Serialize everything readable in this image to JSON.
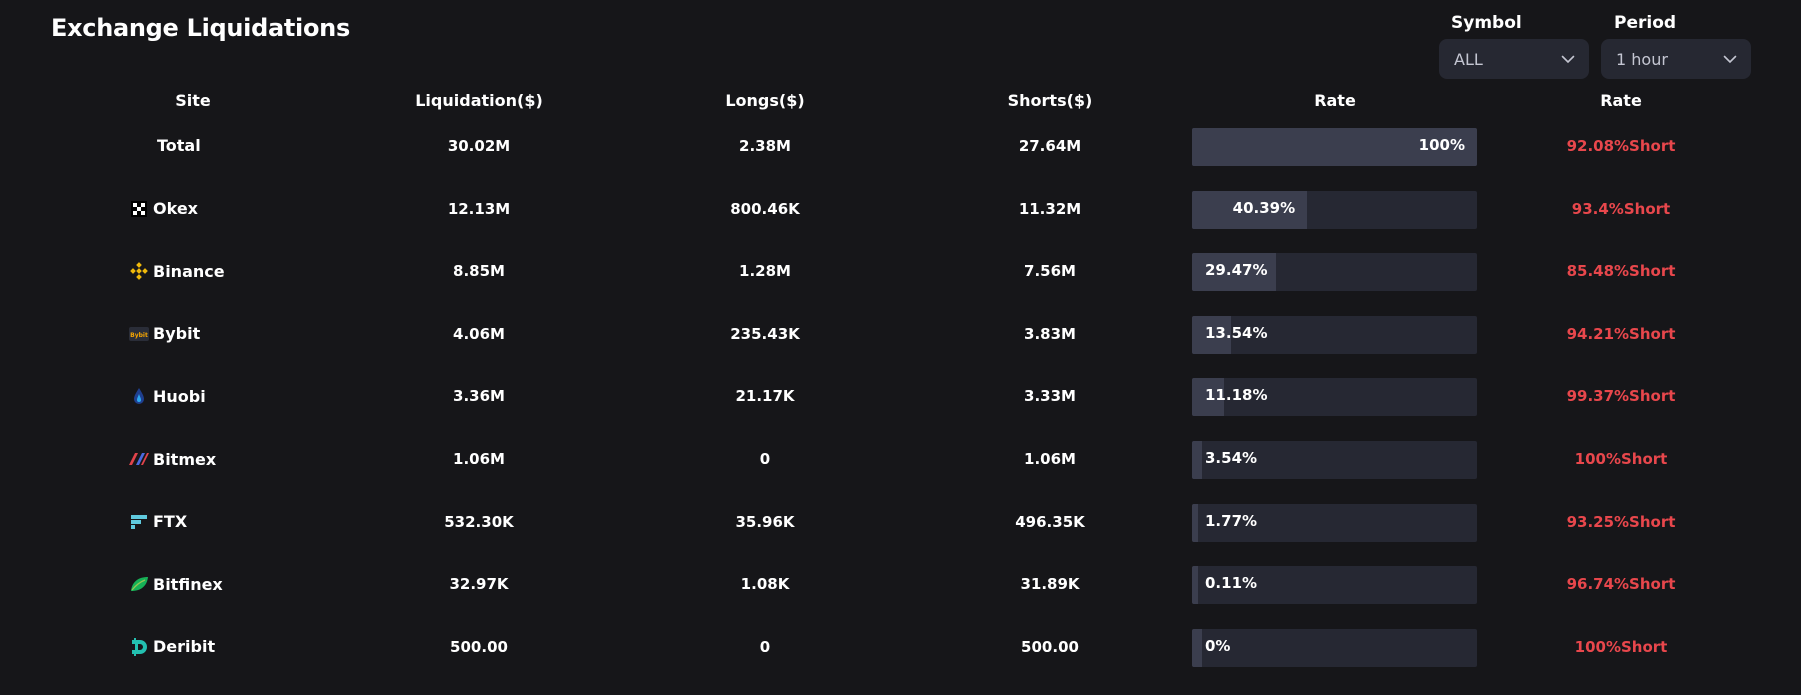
{
  "header": {
    "title": "Exchange Liquidations",
    "symbol": {
      "label": "Symbol",
      "value": "ALL"
    },
    "period": {
      "label": "Period",
      "value": "1 hour"
    }
  },
  "table": {
    "columns": [
      "Site",
      "Liquidation($)",
      "Longs($)",
      "Shorts($)",
      "Rate",
      "Rate"
    ],
    "rows": [
      {
        "site": "Total",
        "icon": "",
        "liquidation": "30.02M",
        "longs": "2.38M",
        "shorts": "27.64M",
        "rate_label": "100%",
        "rate_pct": 100,
        "short_rate": "92.08%Short"
      },
      {
        "site": "Okex",
        "icon": "okex-icon",
        "liquidation": "12.13M",
        "longs": "800.46K",
        "shorts": "11.32M",
        "rate_label": "40.39%",
        "rate_pct": 40.39,
        "short_rate": "93.4%Short"
      },
      {
        "site": "Binance",
        "icon": "binance-icon",
        "liquidation": "8.85M",
        "longs": "1.28M",
        "shorts": "7.56M",
        "rate_label": "29.47%",
        "rate_pct": 29.47,
        "short_rate": "85.48%Short"
      },
      {
        "site": "Bybit",
        "icon": "bybit-icon",
        "liquidation": "4.06M",
        "longs": "235.43K",
        "shorts": "3.83M",
        "rate_label": "13.54%",
        "rate_pct": 13.54,
        "short_rate": "94.21%Short"
      },
      {
        "site": "Huobi",
        "icon": "huobi-icon",
        "liquidation": "3.36M",
        "longs": "21.17K",
        "shorts": "3.33M",
        "rate_label": "11.18%",
        "rate_pct": 11.18,
        "short_rate": "99.37%Short"
      },
      {
        "site": "Bitmex",
        "icon": "bitmex-icon",
        "liquidation": "1.06M",
        "longs": "0",
        "shorts": "1.06M",
        "rate_label": "3.54%",
        "rate_pct": 3.54,
        "short_rate": "100%Short"
      },
      {
        "site": "FTX",
        "icon": "ftx-icon",
        "liquidation": "532.30K",
        "longs": "35.96K",
        "shorts": "496.35K",
        "rate_label": "1.77%",
        "rate_pct": 1.77,
        "short_rate": "93.25%Short"
      },
      {
        "site": "Bitfinex",
        "icon": "bitfinex-icon",
        "liquidation": "32.97K",
        "longs": "1.08K",
        "shorts": "31.89K",
        "rate_label": "0.11%",
        "rate_pct": 0.11,
        "short_rate": "96.74%Short"
      },
      {
        "site": "Deribit",
        "icon": "deribit-icon",
        "liquidation": "500.00",
        "longs": "0",
        "shorts": "500.00",
        "rate_label": "0%",
        "rate_pct": 0,
        "short_rate": "100%Short"
      }
    ]
  },
  "colors": {
    "background": "#161619",
    "bar_track": "#262833",
    "bar_fill": "#3b3e4e",
    "short_rate": "#e8474c",
    "select_bg": "#262832"
  }
}
